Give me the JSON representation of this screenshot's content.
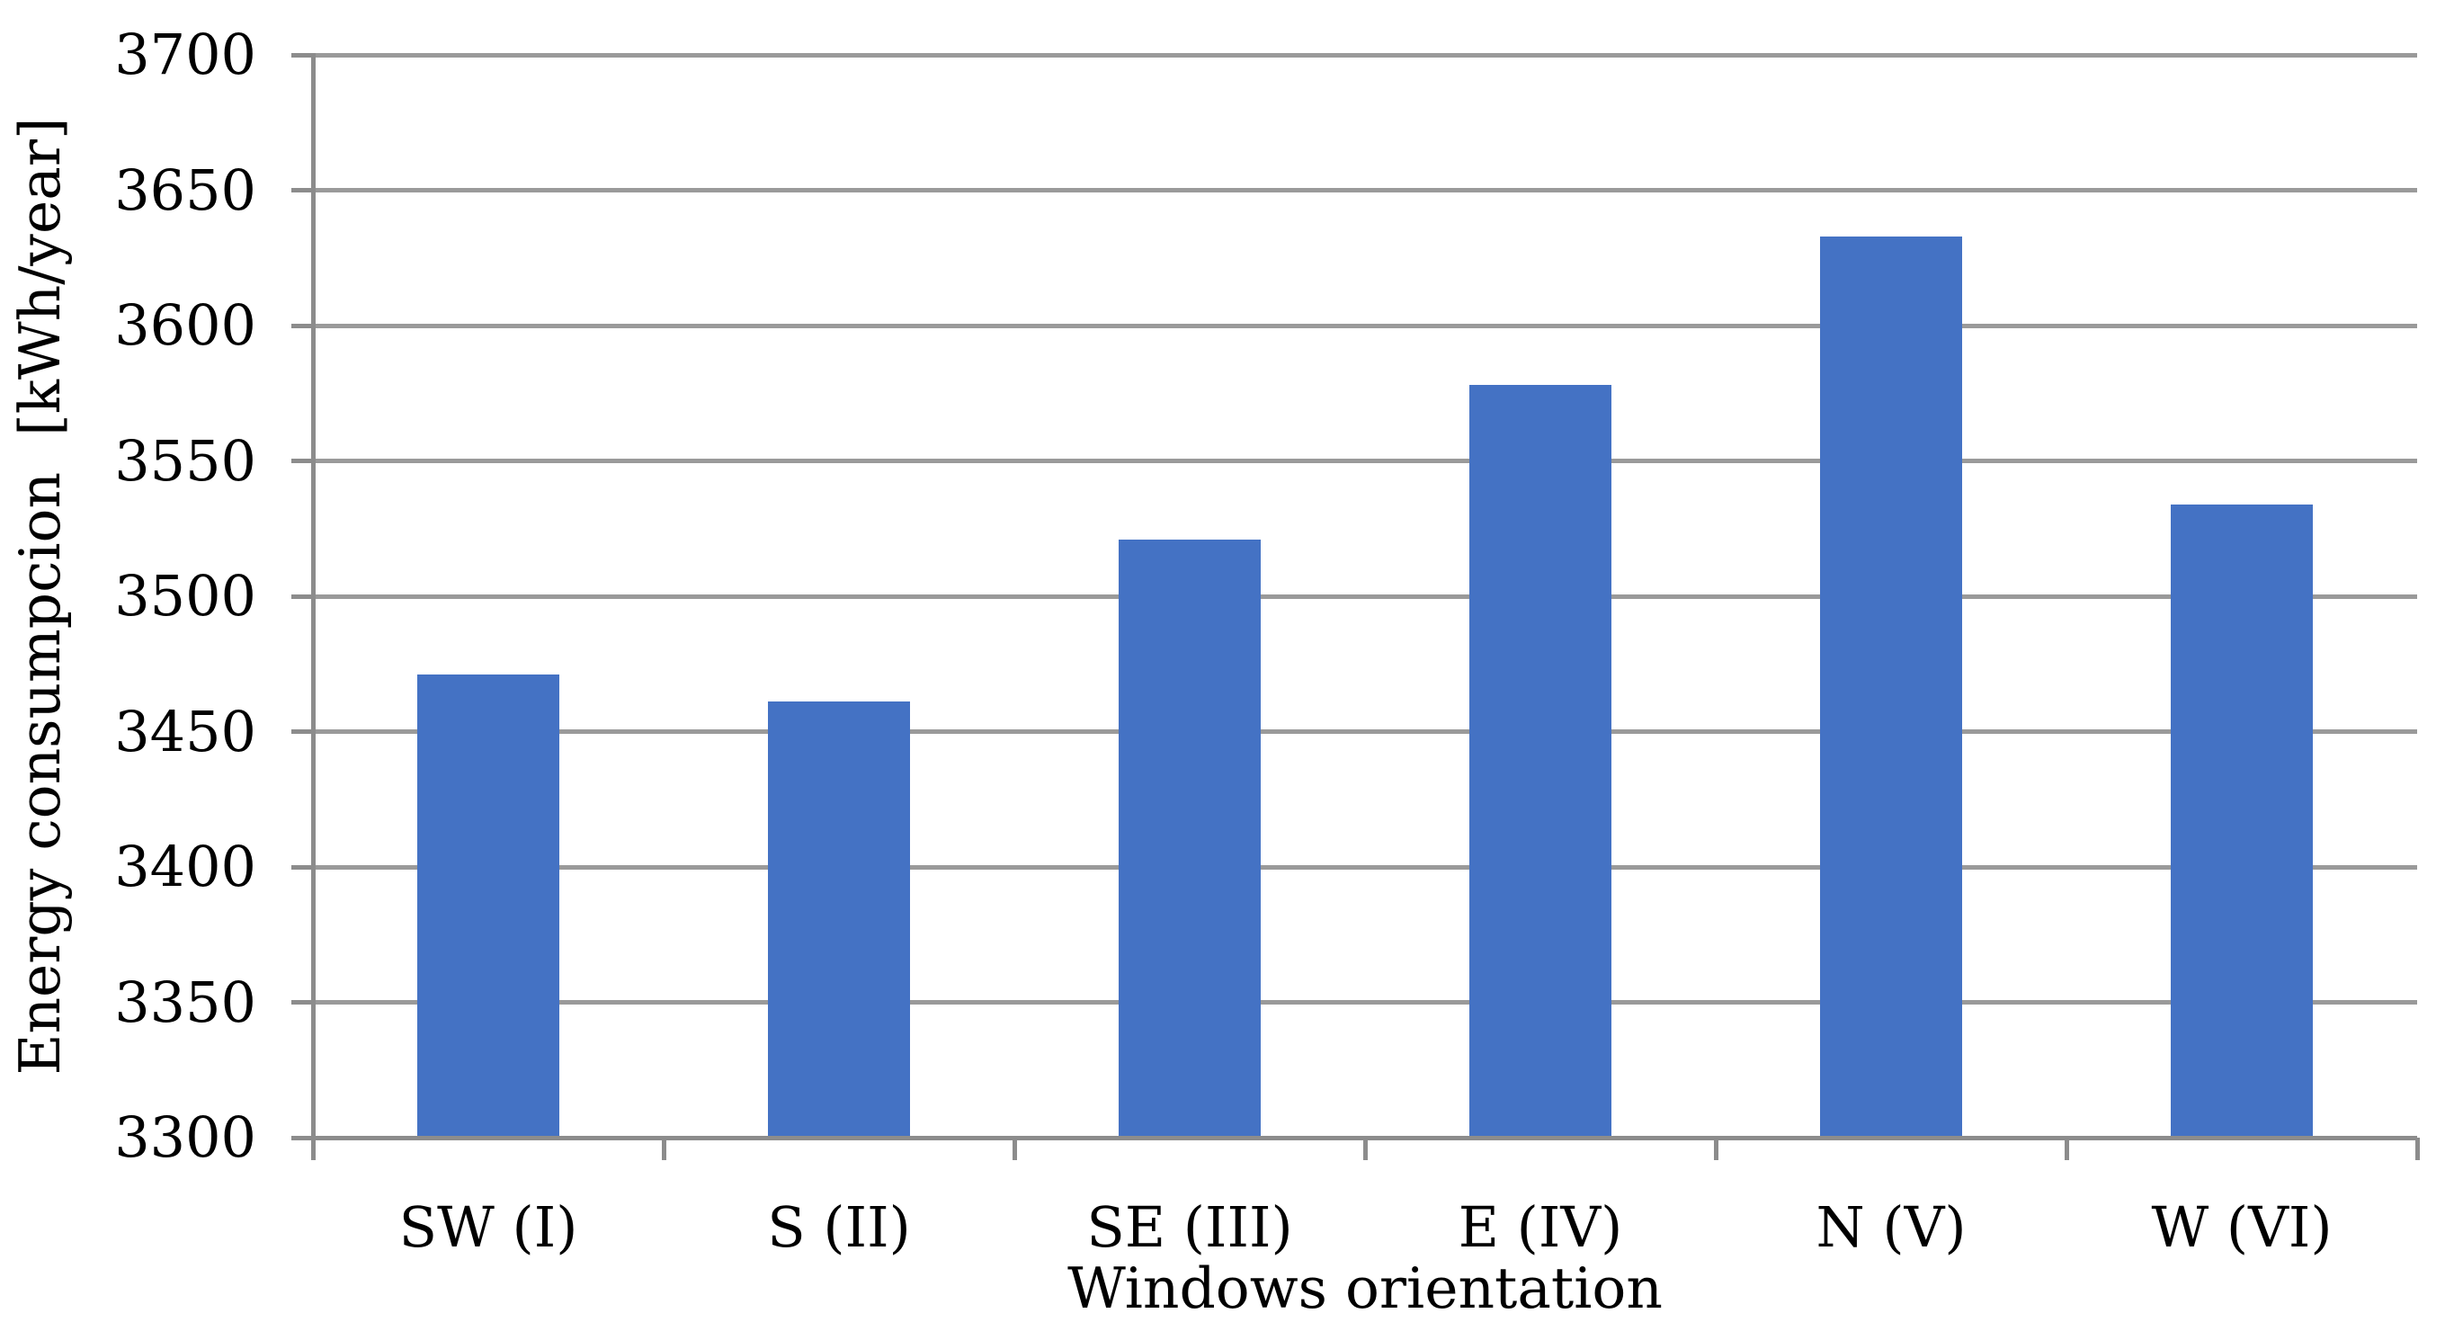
{
  "chart_data": {
    "type": "bar",
    "title": "",
    "categories": [
      "SW (I)",
      "S (II)",
      "SE (III)",
      "E (IV)",
      "N (V)",
      "W (VI)"
    ],
    "values": [
      3471,
      3461,
      3521,
      3578,
      3633,
      3534
    ],
    "xlabel": "Windows orientation",
    "ylabel": "Energy consumpcion  [kWh/year]",
    "ylim": [
      3300,
      3700
    ],
    "ytick_step": 50,
    "ytick_labels": [
      "3300",
      "3350",
      "3400",
      "3450",
      "3500",
      "3550",
      "3600",
      "3650",
      "3700"
    ],
    "grid": true,
    "legend": false,
    "colors": {
      "bar": "#4472C4",
      "gridline": "#9A9A9A",
      "axis": "#8C8C8C",
      "text": "#000000",
      "background": "#FFFFFF"
    }
  }
}
